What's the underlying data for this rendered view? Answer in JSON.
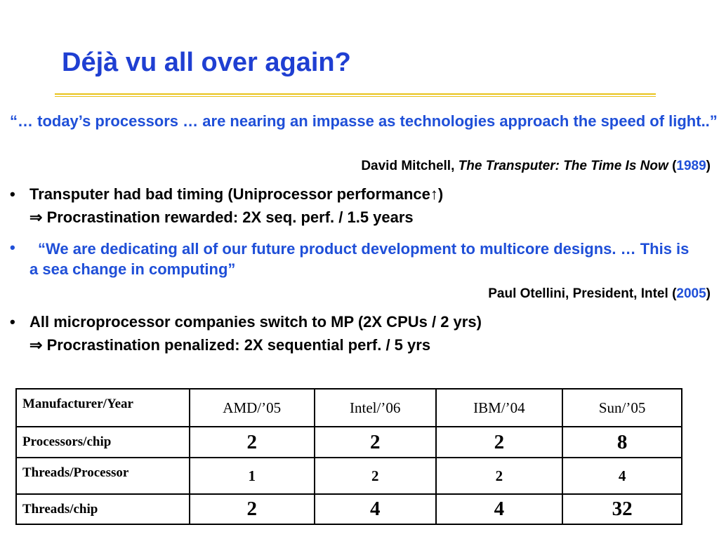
{
  "title": "Déjà vu all over again?",
  "items": [
    {
      "quote": "“… today’s processors … are nearing an impasse as technologies approach the speed of light..”",
      "attribution": [
        "David Mitchell,",
        "The Transputer: The Time Is Now",
        "(",
        "1989",
        ")"
      ]
    },
    {
      "bullet": "•",
      "lines": [
        [
          "Transputer had bad timing (Uniprocessor performance",
          "↑",
          ")"
        ],
        [
          "⇒",
          "Procrastination rewarded: 2X seq. perf. / 1.5 years"
        ]
      ]
    },
    {
      "bullet": "•",
      "quote": "“We are dedicating all of our future product development to multicore designs. … This is a sea change in computing”",
      "attribution": [
        "Paul Otellini, President, Intel",
        "(",
        "2005",
        ")"
      ]
    },
    {
      "bullet": "•",
      "lines": [
        [
          "All microprocessor companies switch to MP (2X CPUs / 2 yrs)"
        ],
        [
          "⇒",
          "Procrastination penalized: 2X sequential perf. / 5 yrs"
        ]
      ]
    }
  ],
  "table": {
    "header": [
      "Manufacturer/Year",
      "AMD/’05",
      "Intel/’06",
      "IBM/’04",
      "Sun/’05"
    ],
    "rows": [
      [
        "Processors/chip",
        2,
        2,
        2,
        8
      ],
      [
        "Threads/Processor",
        1,
        2,
        2,
        4
      ],
      [
        "Threads/chip",
        2,
        4,
        4,
        32
      ]
    ]
  }
}
